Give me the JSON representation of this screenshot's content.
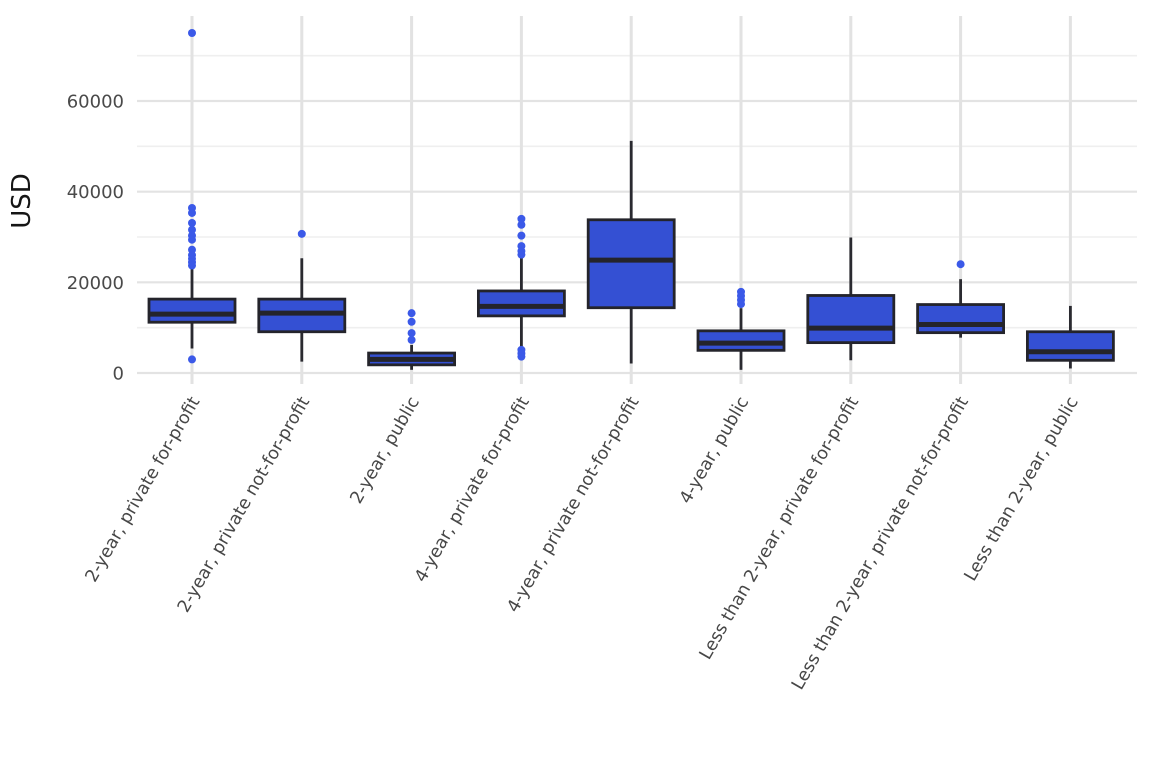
{
  "palette": {
    "background": "#ffffff",
    "box_fill": "#3450d3",
    "box_stroke": "#24242b",
    "median_stroke": "#24242b",
    "whisker_stroke": "#2a2a30",
    "outlier_fill": "#3b59e8",
    "grid_major": "#e3e3e3",
    "grid_minor": "#efefef",
    "grid_vertical": "#e2e2e2",
    "tick_text": "#4a4a4a",
    "axis_title_text": "#151515"
  },
  "chart_data": {
    "type": "boxplot",
    "title": "",
    "xlabel": "",
    "ylabel": "USD",
    "ylim": [
      -1500,
      79000
    ],
    "yticks": [
      0,
      20000,
      40000,
      60000
    ],
    "ytick_labels": [
      "0",
      "20000",
      "40000",
      "60000"
    ],
    "minor_yticks": [
      10000,
      30000,
      50000,
      70000
    ],
    "grid": "on",
    "legend": "none",
    "categories": [
      "2-year, private for-profit",
      "2-year, private not-for-profit",
      "2-year, public",
      "4-year, private for-profit",
      "4-year, private not-for-profit",
      "4-year, public",
      "Less than 2-year, private for-profit",
      "Less than 2-year, private not-for-profit",
      "Less than 2-year, public"
    ],
    "series": [
      {
        "label": "2-year, private for-profit",
        "low": 5400,
        "q1": 11200,
        "median": 13000,
        "q3": 16300,
        "high": 23000,
        "outliers": [
          75000,
          36400,
          35300,
          33100,
          31600,
          30300,
          29400,
          27200,
          26000,
          25200,
          24400,
          23700,
          3000
        ]
      },
      {
        "label": "2-year, private not-for-profit",
        "low": 2500,
        "q1": 9100,
        "median": 13200,
        "q3": 16300,
        "high": 25300,
        "outliers": [
          30700
        ]
      },
      {
        "label": "2-year, public",
        "low": 700,
        "q1": 1800,
        "median": 3000,
        "q3": 4400,
        "high": 6200,
        "outliers": [
          13200,
          11300,
          8800,
          7300
        ]
      },
      {
        "label": "4-year, private for-profit",
        "low": 5500,
        "q1": 12600,
        "median": 14700,
        "q3": 18100,
        "high": 25700,
        "outliers": [
          34000,
          32700,
          30300,
          28000,
          26900,
          26100,
          5100,
          4300,
          3600
        ]
      },
      {
        "label": "4-year, private not-for-profit",
        "low": 2100,
        "q1": 14400,
        "median": 24900,
        "q3": 33800,
        "high": 51200,
        "outliers": []
      },
      {
        "label": "4-year, public",
        "low": 700,
        "q1": 5000,
        "median": 6600,
        "q3": 9300,
        "high": 14300,
        "outliers": [
          17900,
          17000,
          16100,
          15200
        ]
      },
      {
        "label": "Less than 2-year, private for-profit",
        "low": 2800,
        "q1": 6700,
        "median": 9900,
        "q3": 17100,
        "high": 29900,
        "outliers": []
      },
      {
        "label": "Less than 2-year, private not-for-profit",
        "low": 7800,
        "q1": 8900,
        "median": 10700,
        "q3": 15100,
        "high": 20700,
        "outliers": [
          24000
        ]
      },
      {
        "label": "Less than 2-year, public",
        "low": 1000,
        "q1": 2800,
        "median": 4700,
        "q3": 9100,
        "high": 14800,
        "outliers": []
      }
    ]
  }
}
